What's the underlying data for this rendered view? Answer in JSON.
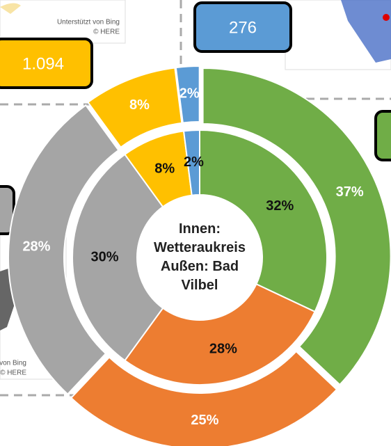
{
  "chart_data": {
    "type": "donut",
    "center_text": [
      "Innen:",
      "Wetteraukreis",
      "Außen: Bad",
      "Vilbel"
    ],
    "colors": [
      "#70ad47",
      "#ed7d31",
      "#a5a5a5",
      "#ffc000",
      "#5b9bd5"
    ],
    "series": [
      {
        "values": [
          32,
          28,
          30,
          8,
          2
        ],
        "value_labels": [
          "32%",
          "28%",
          "30%",
          "8%",
          "2%"
        ]
      },
      {
        "values": [
          37,
          25,
          28,
          8,
          2
        ],
        "value_labels": [
          "37%",
          "25%",
          "28%",
          "8%",
          "2%"
        ]
      }
    ]
  },
  "kpis": [
    "1.094",
    "276"
  ],
  "map_credits": {
    "top": [
      "Unterstützt von Bing",
      "© HERE"
    ],
    "left": [
      "von Bing",
      "© HERE"
    ]
  }
}
